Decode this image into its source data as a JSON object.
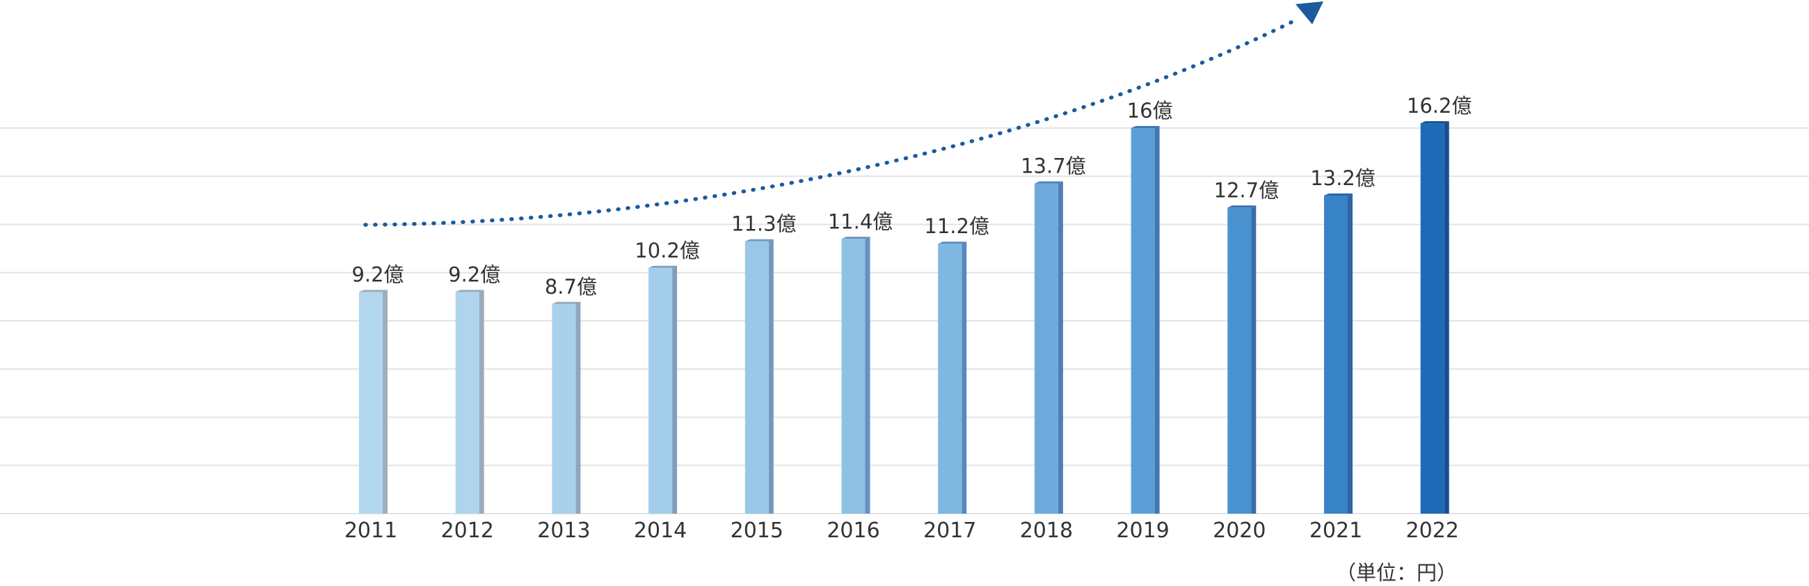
{
  "chart_data": {
    "type": "bar",
    "categories": [
      "2011",
      "2012",
      "2013",
      "2014",
      "2015",
      "2016",
      "2017",
      "2018",
      "2019",
      "2020",
      "2021",
      "2022"
    ],
    "values": [
      9.2,
      9.2,
      8.7,
      10.2,
      11.3,
      11.4,
      11.2,
      13.7,
      16,
      12.7,
      13.2,
      16.2
    ],
    "data_labels": [
      "9.2億",
      "9.2億",
      "8.7億",
      "10.2億",
      "11.3億",
      "11.4億",
      "11.2億",
      "13.7億",
      "16億",
      "12.7億",
      "13.2億",
      "16.2億"
    ],
    "ylim": [
      0,
      16
    ],
    "grid": true,
    "unit_note": "（単位：円）",
    "trend_arrow": true,
    "colors": [
      "#b3d6ef",
      "#afd4ee",
      "#a9d0ec",
      "#a3cdea",
      "#99c7e7",
      "#8fc1e4",
      "#7fb7e0",
      "#6eabdc",
      "#5c9fd6",
      "#4a91cf",
      "#3883c6",
      "#1e6ab6"
    ],
    "side_colors": [
      "#9eaebd",
      "#9aabbb",
      "#8ea6be",
      "#7f9fc0",
      "#7398c0",
      "#6891bf",
      "#5a88bd",
      "#4e7fba",
      "#4276b6",
      "#3a6cac",
      "#2f63a6",
      "#164f91"
    ],
    "arrow_color": "#1a5a9e"
  }
}
